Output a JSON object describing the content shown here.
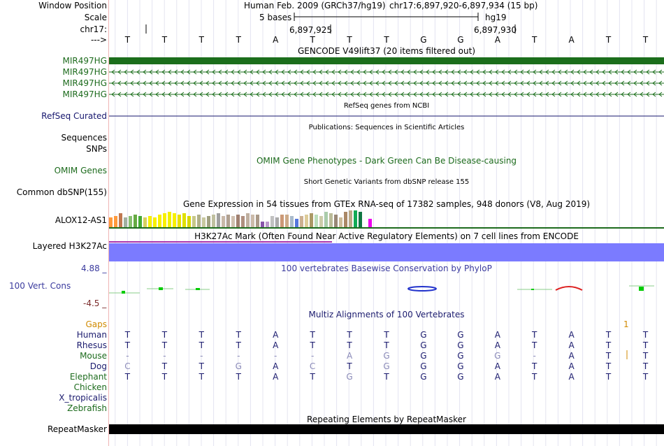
{
  "header": {
    "window_position_label": "Window Position",
    "scale_label": "Scale",
    "chrom_label": "chr17:",
    "arrow_label": "--->",
    "assembly_title": "Human Feb. 2009 (GRCh37/hg19)",
    "position": "chr17:6,897,920-6,897,934 (15 bp)",
    "scale_text": "5 bases",
    "db": "hg19",
    "coord_1": "6,897,925",
    "coord_2": "6,897,930",
    "bases": [
      "T",
      "T",
      "T",
      "T",
      "A",
      "T",
      "T",
      "T",
      "G",
      "G",
      "A",
      "T",
      "A",
      "T",
      "T"
    ]
  },
  "tracks": {
    "gencode": {
      "title": "GENCODE V49lift37 (20 items filtered out)",
      "items": [
        "MIR497HG",
        "MIR497HG",
        "MIR497HG",
        "MIR497HG"
      ],
      "color": "#1b6e1b"
    },
    "refseq": {
      "label": "RefSeq Curated",
      "title": "RefSeq genes from NCBI",
      "color": "#16166e"
    },
    "publications": {
      "label_sequences": "Sequences",
      "label_snps": "SNPs",
      "title": "Publications: Sequences in Scientific Articles"
    },
    "omim": {
      "label": "OMIM Genes",
      "title": "OMIM Gene Phenotypes - Dark Green Can Be Disease-causing",
      "color": "#1d6b1d"
    },
    "dbsnp": {
      "label": "Common dbSNP(155)",
      "title": "Short Genetic Variants from dbSNP release 155"
    },
    "gtex": {
      "label": "ALOX12-AS1",
      "title": "Gene Expression in 54 tissues from GTEx RNA-seq of 17382 samples, 948 donors (V8, Aug 2019)"
    },
    "h3k27ac": {
      "label": "Layered H3K27Ac",
      "title": "H3K27Ac Mark (Often Found Near Active Regulatory Elements) on 7 cell lines from ENCODE",
      "color": "#7b7bff"
    },
    "cons": {
      "label": "100 Vert. Cons",
      "title": "100 vertebrates Basewise Conservation by PhyloP",
      "max": "4.88 _",
      "min": "-4.5 _",
      "color": "#3b3b9e",
      "min_color": "#7a2a2a"
    },
    "multiz": {
      "title": "Multiz Alignments of 100 Vertebrates",
      "gaps_label": "Gaps",
      "gap_count": "1",
      "species": [
        {
          "name": "Human",
          "color": "#1b1b6e",
          "bases": [
            "T",
            "T",
            "T",
            "T",
            "A",
            "T",
            "T",
            "T",
            "G",
            "G",
            "A",
            "T",
            "A",
            "T",
            "T"
          ]
        },
        {
          "name": "Rhesus",
          "color": "#1b1b6e",
          "bases": [
            "T",
            "T",
            "T",
            "T",
            "A",
            "T",
            "T",
            "T",
            "G",
            "G",
            "A",
            "T",
            "A",
            "T",
            "T"
          ]
        },
        {
          "name": "Mouse",
          "color": "#1d6b1d",
          "bases": [
            "-",
            "-",
            "-",
            "-",
            "-",
            "-",
            "A",
            "G",
            "G",
            "G",
            "G",
            "-",
            "A",
            "T",
            "T"
          ]
        },
        {
          "name": "Dog",
          "color": "#1b1b6e",
          "bases": [
            "C",
            "T",
            "T",
            "G",
            "A",
            "C",
            "T",
            "G",
            "G",
            "G",
            "A",
            "T",
            "A",
            "T",
            "T"
          ]
        },
        {
          "name": "Elephant",
          "color": "#1d6b1d",
          "bases": [
            "T",
            "T",
            "T",
            "T",
            "A",
            "T",
            "G",
            "T",
            "G",
            "G",
            "A",
            "T",
            "A",
            "T",
            "T"
          ]
        },
        {
          "name": "Chicken",
          "color": "#1d6b1d",
          "bases": []
        },
        {
          "name": "X_tropicalis",
          "color": "#1b1b6e",
          "bases": []
        },
        {
          "name": "Zebrafish",
          "color": "#1d6b1d",
          "bases": []
        }
      ]
    },
    "repeatmasker": {
      "label": "RepeatMasker",
      "title": "Repeating Elements by RepeatMasker"
    }
  }
}
